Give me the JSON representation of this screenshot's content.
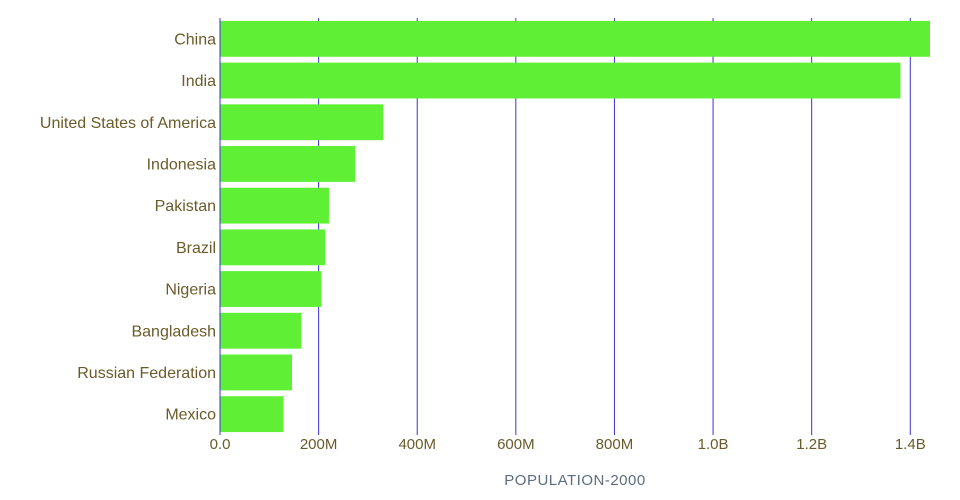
{
  "chart_data": {
    "type": "bar",
    "orientation": "horizontal",
    "categories": [
      "China",
      "India",
      "United States of America",
      "Indonesia",
      "Pakistan",
      "Brazil",
      "Nigeria",
      "Bangladesh",
      "Russian Federation",
      "Mexico"
    ],
    "values": [
      1440000000,
      1380000000,
      331000000,
      274000000,
      221000000,
      213000000,
      206000000,
      165000000,
      146000000,
      129000000
    ],
    "xlabel": "POPULATION-2000",
    "ylabel": "",
    "xlim": [
      0,
      1440000000
    ],
    "xticks": [
      0,
      200000000,
      400000000,
      600000000,
      800000000,
      1000000000,
      1200000000,
      1400000000
    ],
    "xtick_labels": [
      "0.0",
      "200M",
      "400M",
      "600M",
      "800M",
      "1.0B",
      "1.2B",
      "1.4B"
    ],
    "grid": "vertical",
    "colors": {
      "bar": "#5ff035",
      "grid": "#3b33d6",
      "axis": "#3b33d6",
      "label": "#6b5b2a",
      "axis_title": "#5f6b7f"
    }
  }
}
